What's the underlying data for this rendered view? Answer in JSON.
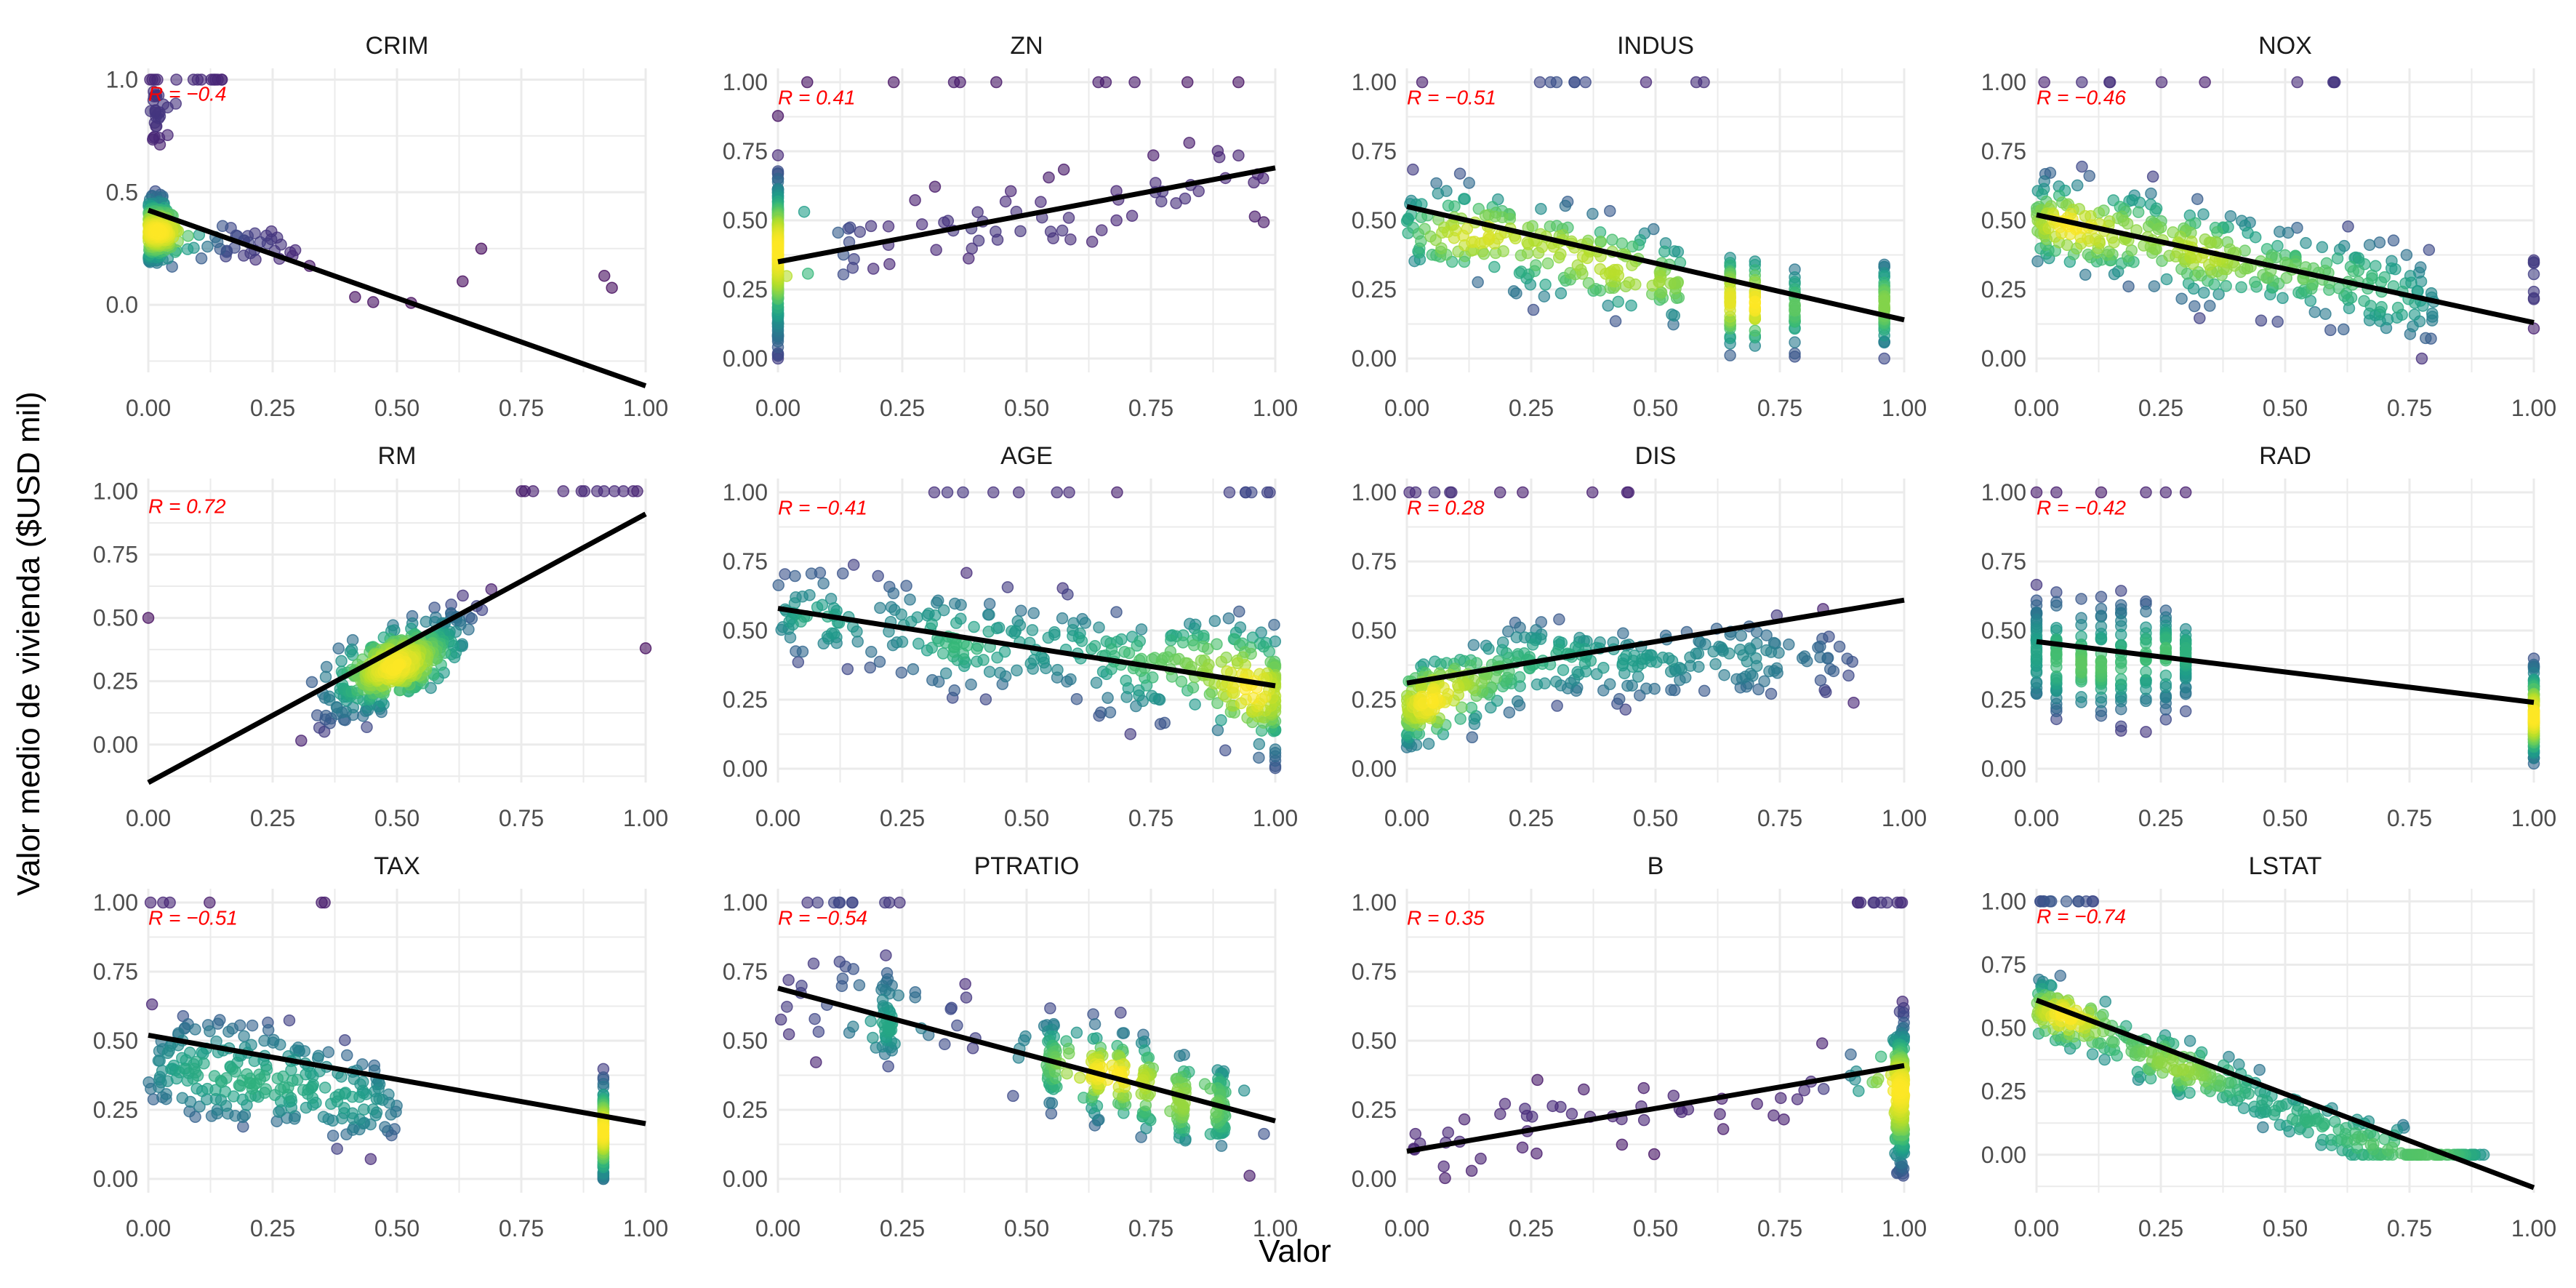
{
  "chart_data": {
    "type": "scatter",
    "xlabel": "Valor",
    "ylabel": "Valor medio de vivienda ($USD mil)",
    "x_ticks": [
      "0.00",
      "0.25",
      "0.50",
      "0.75",
      "1.00"
    ],
    "point_colormap": "viridis",
    "point_color_meaning": "density",
    "fit_color": "#000000",
    "annotation_color": "#ff0000",
    "grid": true,
    "panels": [
      {
        "name": "CRIM",
        "r_label": "R = −0.4",
        "ylim": [
          -0.3,
          1.05
        ],
        "y_ticks": [
          "0.0",
          "0.5",
          "1.0"
        ],
        "fit": {
          "y0": 0.42,
          "y1": -0.36
        },
        "pattern": "crim",
        "trend": -0.75
      },
      {
        "name": "ZN",
        "r_label": "R = 0.41",
        "ylim": [
          -0.05,
          1.05
        ],
        "y_ticks": [
          "0.00",
          "0.25",
          "0.50",
          "0.75",
          "1.00"
        ],
        "fit": {
          "y0": 0.35,
          "y1": 0.69
        },
        "pattern": "zn",
        "trend": 0.35
      },
      {
        "name": "INDUS",
        "r_label": "R = −0.51",
        "ylim": [
          -0.05,
          1.05
        ],
        "y_ticks": [
          "0.00",
          "0.25",
          "0.50",
          "0.75",
          "1.00"
        ],
        "fit": {
          "y0": 0.55,
          "y1": 0.14
        },
        "pattern": "indus",
        "trend": -0.41
      },
      {
        "name": "NOX",
        "r_label": "R = −0.46",
        "ylim": [
          -0.05,
          1.05
        ],
        "y_ticks": [
          "0.00",
          "0.25",
          "0.50",
          "0.75",
          "1.00"
        ],
        "fit": {
          "y0": 0.52,
          "y1": 0.13
        },
        "pattern": "spread",
        "trend": -0.39
      },
      {
        "name": "RM",
        "r_label": "R = 0.72",
        "ylim": [
          -0.15,
          1.05
        ],
        "y_ticks": [
          "0.00",
          "0.25",
          "0.50",
          "0.75",
          "1.00"
        ],
        "fit": {
          "y0": -0.15,
          "y1": 0.91
        },
        "pattern": "rm",
        "trend": 1.06
      },
      {
        "name": "AGE",
        "r_label": "R = −0.41",
        "ylim": [
          -0.05,
          1.05
        ],
        "y_ticks": [
          "0.00",
          "0.25",
          "0.50",
          "0.75",
          "1.00"
        ],
        "fit": {
          "y0": 0.58,
          "y1": 0.3
        },
        "pattern": "age",
        "trend": -0.28
      },
      {
        "name": "DIS",
        "r_label": "R = 0.28",
        "ylim": [
          -0.05,
          1.05
        ],
        "y_ticks": [
          "0.00",
          "0.25",
          "0.50",
          "0.75",
          "1.00"
        ],
        "fit": {
          "y0": 0.31,
          "y1": 0.61
        },
        "pattern": "dis",
        "trend": 0.3
      },
      {
        "name": "RAD",
        "r_label": "R = −0.42",
        "ylim": [
          -0.05,
          1.05
        ],
        "y_ticks": [
          "0.00",
          "0.25",
          "0.50",
          "0.75",
          "1.00"
        ],
        "fit": {
          "y0": 0.46,
          "y1": 0.24
        },
        "pattern": "rad",
        "trend": -0.22
      },
      {
        "name": "TAX",
        "r_label": "R = −0.51",
        "ylim": [
          -0.05,
          1.05
        ],
        "y_ticks": [
          "0.00",
          "0.25",
          "0.50",
          "0.75",
          "1.00"
        ],
        "fit": {
          "y0": 0.52,
          "y1": 0.2
        },
        "pattern": "tax",
        "trend": -0.32
      },
      {
        "name": "PTRATIO",
        "r_label": "R = −0.54",
        "ylim": [
          -0.05,
          1.05
        ],
        "y_ticks": [
          "0.00",
          "0.25",
          "0.50",
          "0.75",
          "1.00"
        ],
        "fit": {
          "y0": 0.69,
          "y1": 0.21
        },
        "pattern": "ptratio",
        "trend": -0.48
      },
      {
        "name": "B",
        "r_label": "R = 0.35",
        "ylim": [
          -0.05,
          1.05
        ],
        "y_ticks": [
          "0.00",
          "0.25",
          "0.50",
          "0.75",
          "1.00"
        ],
        "fit": {
          "y0": 0.1,
          "y1": 0.41
        },
        "pattern": "b",
        "trend": 0.31
      },
      {
        "name": "LSTAT",
        "r_label": "R = −0.74",
        "ylim": [
          -0.15,
          1.05
        ],
        "y_ticks": [
          "0.00",
          "0.25",
          "0.50",
          "0.75",
          "1.00"
        ],
        "fit": {
          "y0": 0.61,
          "y1": -0.13
        },
        "pattern": "lstat",
        "trend": -0.74
      }
    ]
  }
}
